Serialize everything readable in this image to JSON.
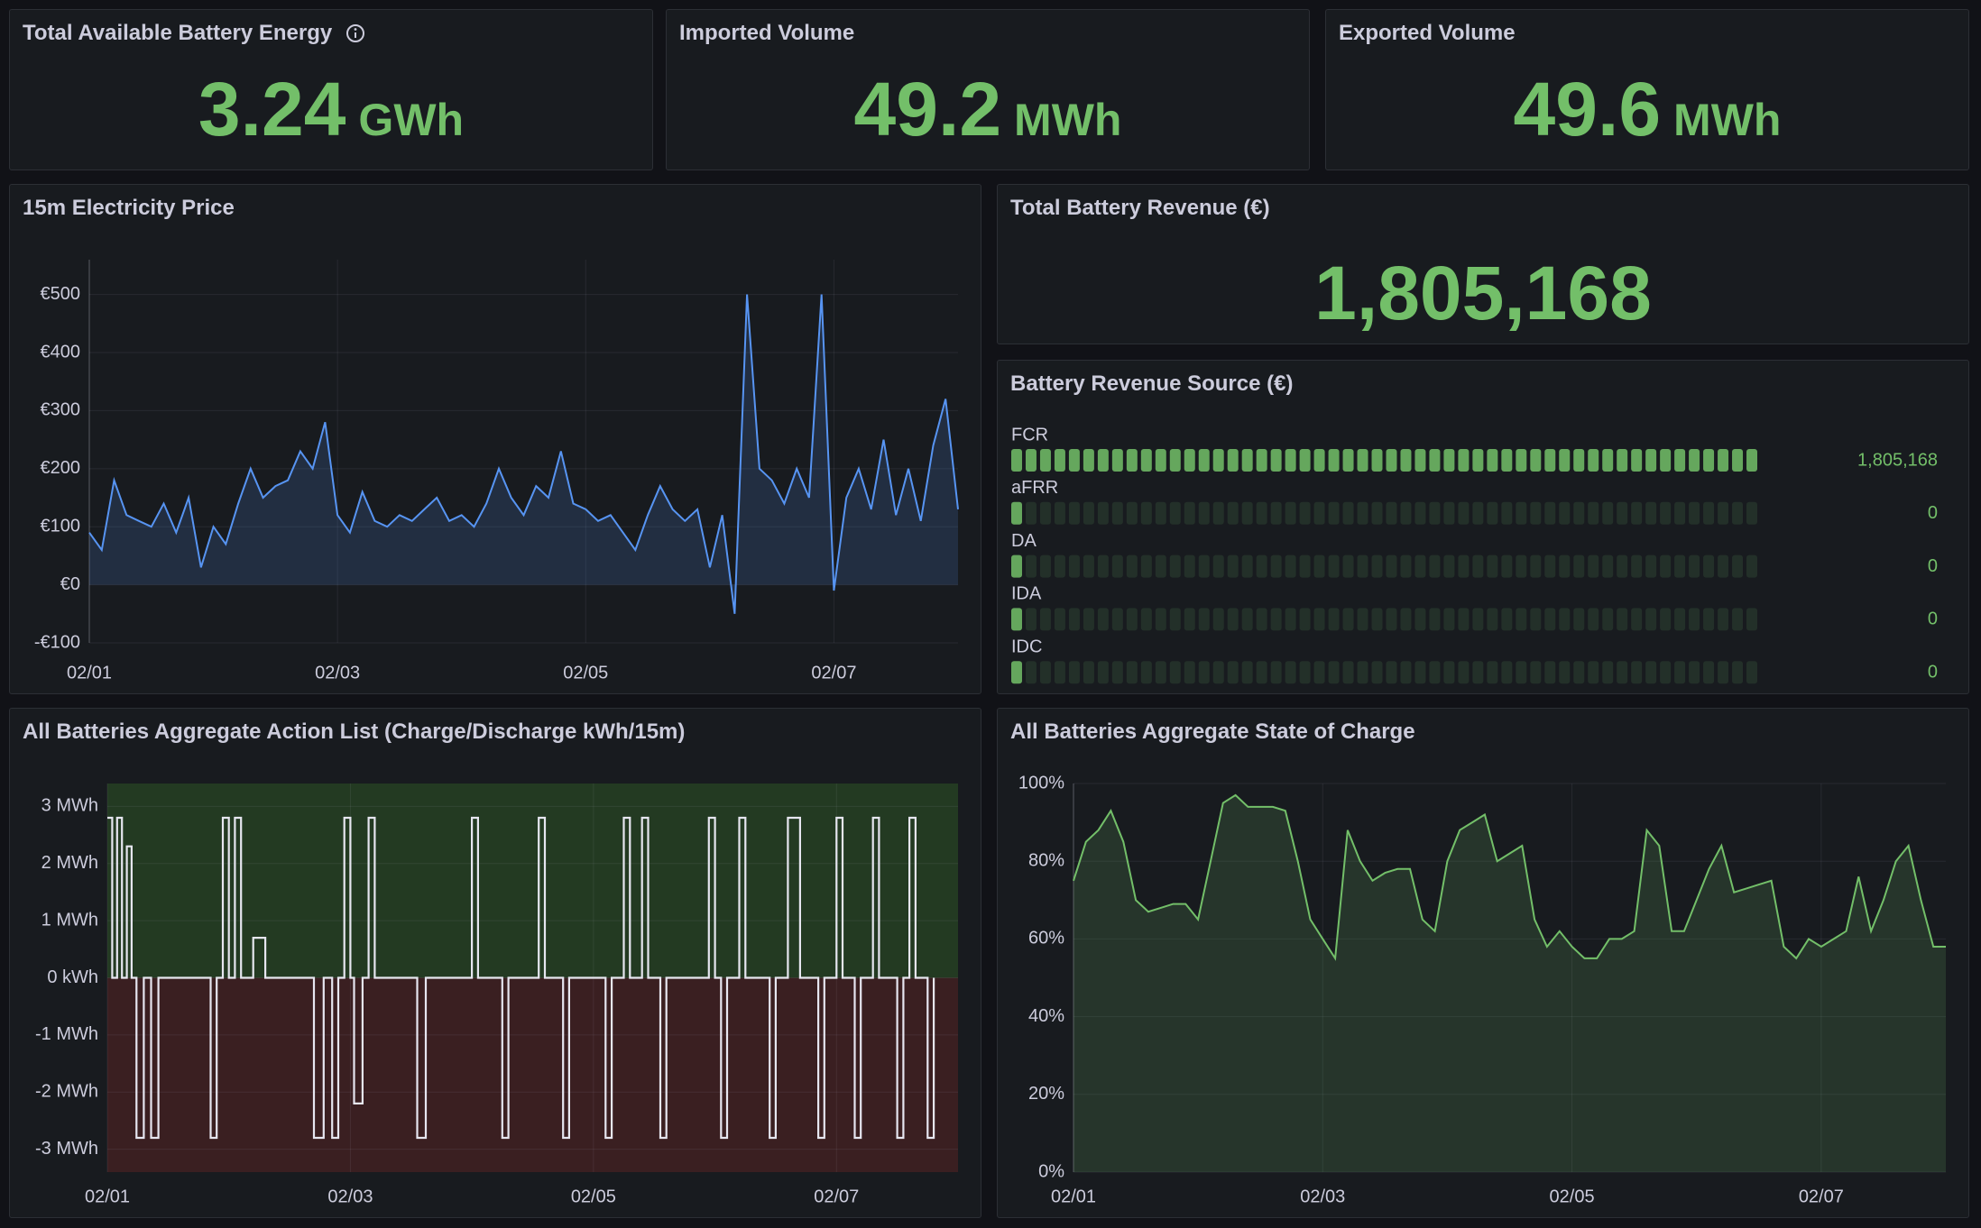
{
  "stats": [
    {
      "title": "Total Available Battery Energy",
      "value": 3.24,
      "unit": "GWh"
    },
    {
      "title": "Imported Volume",
      "value": 49.2,
      "unit": "MWh"
    },
    {
      "title": "Exported Volume",
      "value": 49.6,
      "unit": "MWh"
    }
  ],
  "total_revenue": {
    "title": "Total Battery Revenue (€)",
    "values": [
      1805168
    ],
    "value_labels": [
      "1,805,168"
    ]
  },
  "chart_data": [
    {
      "type": "line",
      "title": "15m Electricity Price",
      "color": "#5794f2",
      "area": true,
      "grid": true,
      "x": [
        0,
        0.1,
        0.2,
        0.3,
        0.4,
        0.5,
        0.6,
        0.7,
        0.8,
        0.9,
        1,
        1.1,
        1.2,
        1.3,
        1.4,
        1.5,
        1.6,
        1.7,
        1.8,
        1.9,
        2,
        2.1,
        2.2,
        2.3,
        2.4,
        2.5,
        2.6,
        2.7,
        2.8,
        2.9,
        3,
        3.1,
        3.2,
        3.3,
        3.4,
        3.5,
        3.6,
        3.7,
        3.8,
        3.9,
        4,
        4.1,
        4.2,
        4.3,
        4.4,
        4.5,
        4.6,
        4.7,
        4.8,
        4.9,
        5,
        5.1,
        5.2,
        5.3,
        5.4,
        5.5,
        5.6,
        5.7,
        5.8,
        5.9,
        6,
        6.1,
        6.2,
        6.3,
        6.4,
        6.5,
        6.6,
        6.7,
        6.8,
        6.9,
        7
      ],
      "values": [
        90,
        60,
        180,
        120,
        110,
        100,
        140,
        90,
        150,
        30,
        100,
        70,
        140,
        200,
        150,
        170,
        180,
        230,
        200,
        280,
        120,
        90,
        160,
        110,
        100,
        120,
        110,
        130,
        150,
        110,
        120,
        100,
        140,
        200,
        150,
        120,
        170,
        150,
        230,
        140,
        130,
        110,
        120,
        90,
        60,
        120,
        170,
        130,
        110,
        130,
        30,
        120,
        -50,
        500,
        200,
        180,
        140,
        200,
        150,
        500,
        -10,
        150,
        200,
        130,
        250,
        120,
        200,
        110,
        240,
        320,
        130
      ],
      "xlim": [
        0,
        7
      ],
      "ylim": [
        -100,
        560
      ],
      "xticks": [
        {
          "value": 0,
          "label": "02/01"
        },
        {
          "value": 2,
          "label": "02/03"
        },
        {
          "value": 4,
          "label": "02/05"
        },
        {
          "value": 6,
          "label": "02/07"
        }
      ],
      "yticks": [
        {
          "value": -100,
          "label": "-€100"
        },
        {
          "value": 0,
          "label": "€0"
        },
        {
          "value": 100,
          "label": "€100"
        },
        {
          "value": 200,
          "label": "€200"
        },
        {
          "value": 300,
          "label": "€300"
        },
        {
          "value": 400,
          "label": "€400"
        },
        {
          "value": 500,
          "label": "€500"
        }
      ]
    },
    {
      "type": "bargauge",
      "title": "Battery Revenue Source (€)",
      "color": "#73bf69",
      "categories": [
        "FCR",
        "aFRR",
        "DA",
        "IDA",
        "IDC"
      ],
      "values": [
        1805168,
        0,
        0,
        0,
        0
      ],
      "value_labels": [
        "1,805,168",
        "0",
        "0",
        "0",
        "0"
      ],
      "xlim": [
        0,
        1805168
      ]
    },
    {
      "type": "step",
      "title": "All Batteries Aggregate Action List (Charge/Discharge kWh/15m)",
      "color": "#e6e6f0",
      "above_color": "#233a22",
      "below_color": "#3a1f21",
      "grid": true,
      "x": [
        0,
        0.04,
        0.08,
        0.12,
        0.16,
        0.2,
        0.24,
        0.3,
        0.36,
        0.42,
        0.85,
        0.9,
        0.95,
        1,
        1.05,
        1.1,
        1.2,
        1.3,
        1.7,
        1.78,
        1.85,
        1.9,
        1.95,
        2,
        2.03,
        2.1,
        2.15,
        2.2,
        2.55,
        2.62,
        3,
        3.05,
        3.25,
        3.3,
        3.55,
        3.6,
        3.75,
        3.8,
        4.1,
        4.15,
        4.25,
        4.3,
        4.4,
        4.45,
        4.55,
        4.6,
        4.95,
        5,
        5.05,
        5.1,
        5.2,
        5.25,
        5.45,
        5.5,
        5.6,
        5.7,
        5.85,
        5.9,
        6,
        6.05,
        6.15,
        6.2,
        6.3,
        6.35,
        6.5,
        6.55,
        6.6,
        6.65,
        6.75,
        6.8
      ],
      "values": [
        2.8,
        0,
        2.8,
        0,
        2.3,
        0,
        -2.8,
        0,
        -2.8,
        0,
        -2.8,
        0,
        2.8,
        0,
        2.8,
        0,
        0.7,
        0,
        -2.8,
        0,
        -2.8,
        0,
        2.8,
        0,
        -2.2,
        0,
        2.8,
        0,
        -2.8,
        0,
        2.8,
        0,
        -2.8,
        0,
        2.8,
        0,
        -2.8,
        0,
        -2.8,
        0,
        2.8,
        0,
        2.8,
        0,
        -2.8,
        0,
        2.8,
        0,
        -2.8,
        0,
        2.8,
        0,
        -2.8,
        0,
        2.8,
        0,
        -2.8,
        0,
        2.8,
        0,
        -2.8,
        0,
        2.8,
        0,
        -2.8,
        0,
        2.8,
        0,
        -2.8,
        0
      ],
      "xlim": [
        0,
        7
      ],
      "ylim": [
        -3.4,
        3.4
      ],
      "xticks": [
        {
          "value": 0,
          "label": "02/01"
        },
        {
          "value": 2,
          "label": "02/03"
        },
        {
          "value": 4,
          "label": "02/05"
        },
        {
          "value": 6,
          "label": "02/07"
        }
      ],
      "yticks": [
        {
          "value": -3,
          "label": "-3 MWh"
        },
        {
          "value": -2,
          "label": "-2 MWh"
        },
        {
          "value": -1,
          "label": "-1 MWh"
        },
        {
          "value": 0,
          "label": "0 kWh"
        },
        {
          "value": 1,
          "label": "1 MWh"
        },
        {
          "value": 2,
          "label": "2 MWh"
        },
        {
          "value": 3,
          "label": "3 MWh"
        }
      ]
    },
    {
      "type": "line",
      "title": "All Batteries Aggregate State of Charge",
      "color": "#73bf69",
      "area": true,
      "grid": true,
      "x": [
        0,
        0.1,
        0.2,
        0.3,
        0.4,
        0.5,
        0.6,
        0.7,
        0.8,
        0.9,
        1,
        1.1,
        1.2,
        1.3,
        1.4,
        1.5,
        1.6,
        1.7,
        1.8,
        1.9,
        2,
        2.1,
        2.2,
        2.3,
        2.4,
        2.5,
        2.6,
        2.7,
        2.8,
        2.9,
        3,
        3.1,
        3.2,
        3.3,
        3.4,
        3.5,
        3.6,
        3.7,
        3.8,
        3.9,
        4,
        4.1,
        4.2,
        4.3,
        4.4,
        4.5,
        4.6,
        4.7,
        4.8,
        4.9,
        5,
        5.1,
        5.2,
        5.3,
        5.4,
        5.5,
        5.6,
        5.7,
        5.8,
        5.9,
        6,
        6.1,
        6.2,
        6.3,
        6.4,
        6.5,
        6.6,
        6.7,
        6.8,
        6.9,
        7
      ],
      "values": [
        75,
        85,
        88,
        93,
        85,
        70,
        67,
        68,
        69,
        69,
        65,
        80,
        95,
        97,
        94,
        94,
        94,
        93,
        80,
        65,
        60,
        55,
        88,
        80,
        75,
        77,
        78,
        78,
        65,
        62,
        80,
        88,
        90,
        92,
        80,
        82,
        84,
        65,
        58,
        62,
        58,
        55,
        55,
        60,
        60,
        62,
        88,
        84,
        62,
        62,
        70,
        78,
        84,
        72,
        73,
        74,
        75,
        58,
        55,
        60,
        58,
        60,
        62,
        76,
        62,
        70,
        80,
        84,
        70,
        58,
        58
      ],
      "xlim": [
        0,
        7
      ],
      "ylim": [
        0,
        100
      ],
      "xticks": [
        {
          "value": 0,
          "label": "02/01"
        },
        {
          "value": 2,
          "label": "02/03"
        },
        {
          "value": 4,
          "label": "02/05"
        },
        {
          "value": 6,
          "label": "02/07"
        }
      ],
      "yticks": [
        {
          "value": 0,
          "label": "0%"
        },
        {
          "value": 20,
          "label": "20%"
        },
        {
          "value": 40,
          "label": "40%"
        },
        {
          "value": 60,
          "label": "60%"
        },
        {
          "value": 80,
          "label": "80%"
        },
        {
          "value": 100,
          "label": "100%"
        }
      ]
    }
  ]
}
